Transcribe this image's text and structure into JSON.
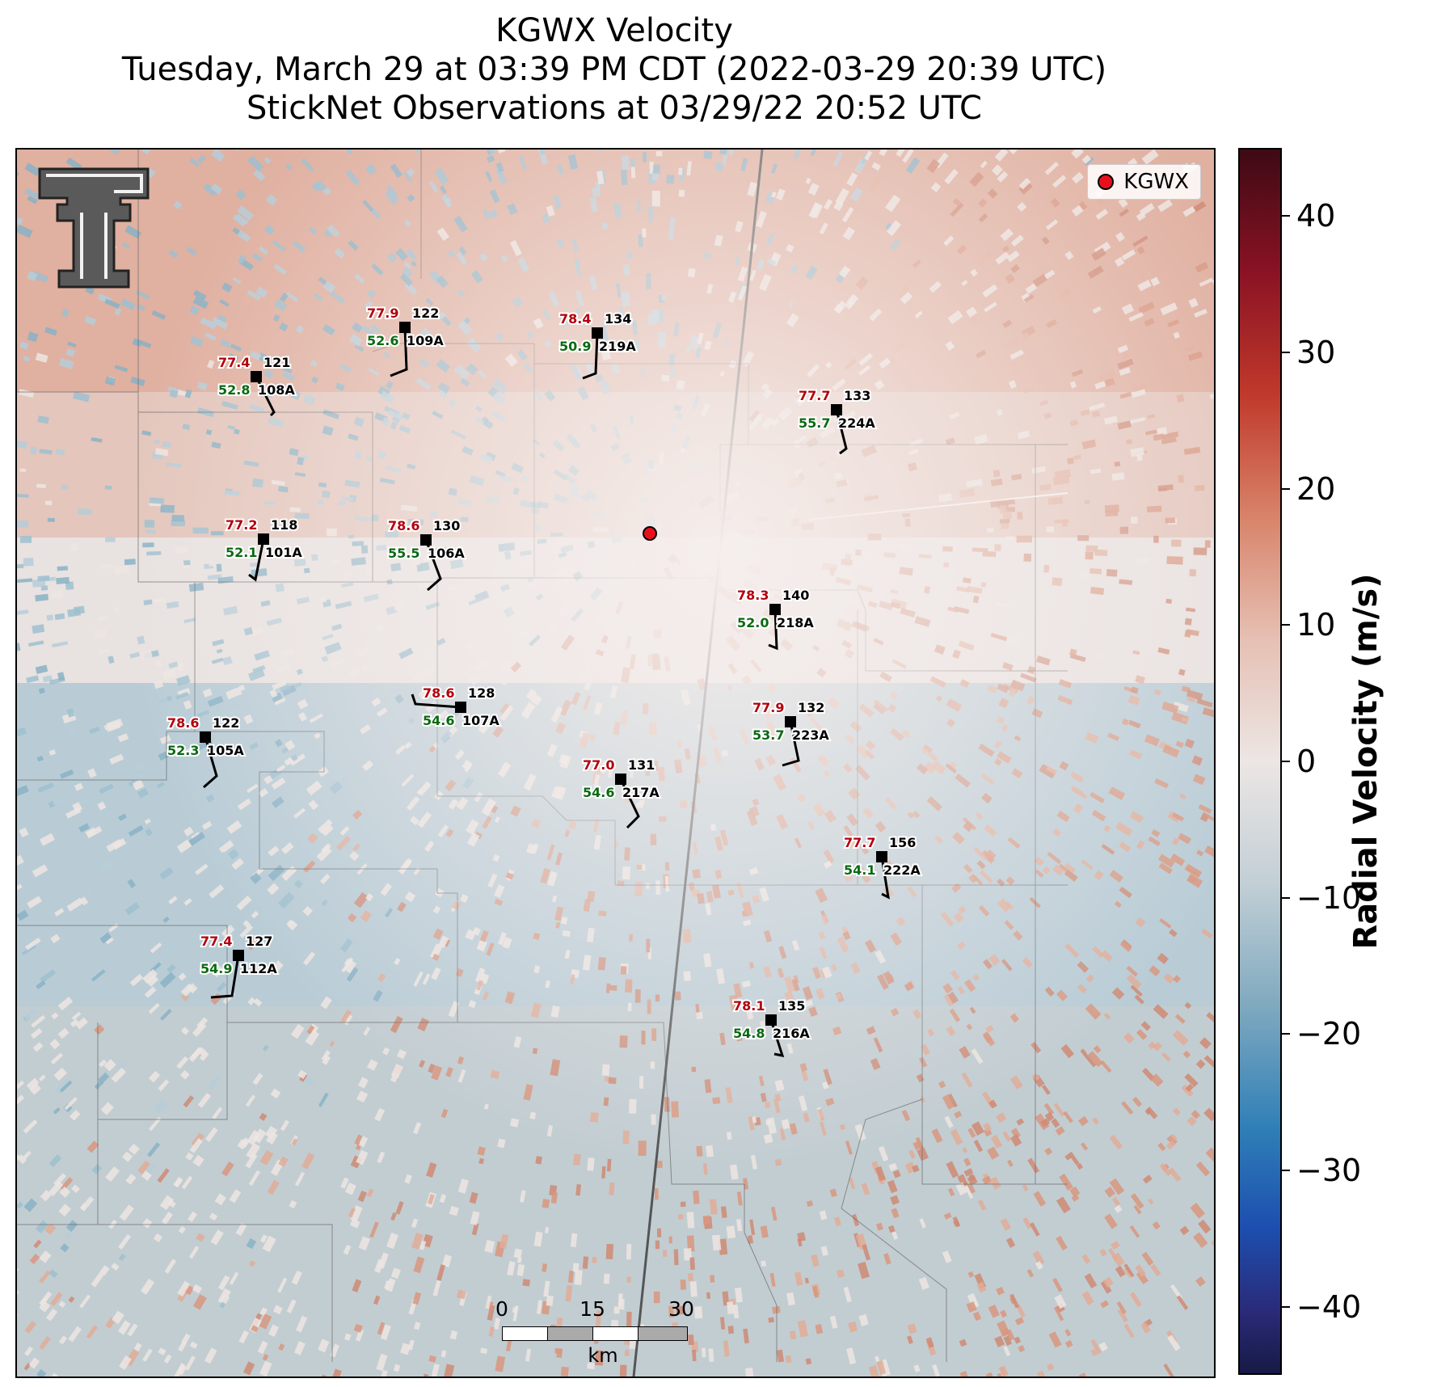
{
  "title": {
    "line1": "KGWX Velocity",
    "line2": "Tuesday, March 29 at 03:39 PM CDT (2022-03-29 20:39 UTC)",
    "line3": "StickNet Observations at 03/29/22 20:52 UTC"
  },
  "legend": {
    "label": "KGWX",
    "marker_color": "#e8101c"
  },
  "colorbar": {
    "label": "Radial Velocity (m/s)",
    "range": [
      -45,
      45
    ],
    "ticks": [
      "40",
      "30",
      "20",
      "10",
      "0",
      "−10",
      "−20",
      "−30",
      "−40"
    ]
  },
  "scalebar": {
    "labels": [
      "0",
      "15",
      "30"
    ],
    "unit": "km"
  },
  "colors": {
    "inbound": "#7fa9bf",
    "outbound": "#d8836a",
    "temp": "#b3000c",
    "dewpoint": "#0a6a12"
  },
  "stations": [
    {
      "id": "101A",
      "temp": "77.2",
      "dew": "52.1",
      "dir": "118"
    },
    {
      "id": "106A",
      "temp": "78.6",
      "dew": "55.5",
      "dir": "130"
    },
    {
      "id": "108A",
      "temp": "77.4",
      "dew": "52.8",
      "dir": "121"
    },
    {
      "id": "109A",
      "temp": "77.9",
      "dew": "52.6",
      "dir": "122"
    },
    {
      "id": "219A",
      "temp": "78.4",
      "dew": "50.9",
      "dir": "134"
    },
    {
      "id": "224A",
      "temp": "77.7",
      "dew": "55.7",
      "dir": "133"
    },
    {
      "id": "218A",
      "temp": "78.3",
      "dew": "52.0",
      "dir": "140"
    },
    {
      "id": "107A",
      "temp": "78.6",
      "dew": "54.6",
      "dir": "128"
    },
    {
      "id": "105A",
      "temp": "78.6",
      "dew": "52.3",
      "dir": "122"
    },
    {
      "id": "223A",
      "temp": "77.9",
      "dew": "53.7",
      "dir": "132"
    },
    {
      "id": "217A",
      "temp": "77.0",
      "dew": "54.6",
      "dir": "131"
    },
    {
      "id": "222A",
      "temp": "77.7",
      "dew": "54.1",
      "dir": "156"
    },
    {
      "id": "112A",
      "temp": "77.4",
      "dew": "54.9",
      "dir": "127"
    },
    {
      "id": "216A",
      "temp": "78.1",
      "dew": "54.8",
      "dir": "135"
    }
  ]
}
